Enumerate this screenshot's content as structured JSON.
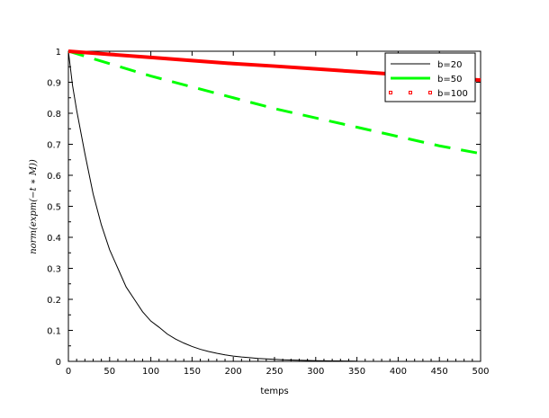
{
  "chart_data": {
    "type": "line",
    "xlabel": "temps",
    "ylabel": "norm(expm(−t ∗ M))",
    "xlim": [
      0,
      500
    ],
    "ylim": [
      0,
      1
    ],
    "xticks": [
      0,
      50,
      100,
      150,
      200,
      250,
      300,
      350,
      400,
      450,
      500
    ],
    "yticks": [
      0,
      0.1,
      0.2,
      0.3,
      0.4,
      0.5,
      0.6,
      0.7,
      0.8,
      0.9,
      1
    ],
    "grid": false,
    "legend_position": "top-right",
    "series": [
      {
        "name": "b=20",
        "color": "#000000",
        "style": "solid-thin",
        "x": [
          0,
          5,
          10,
          20,
          30,
          40,
          50,
          60,
          70,
          80,
          90,
          100,
          110,
          120,
          130,
          140,
          150,
          160,
          170,
          180,
          190,
          200,
          210,
          220,
          230,
          240,
          250,
          260,
          270,
          280,
          290,
          300,
          310,
          320,
          330,
          340,
          350
        ],
        "y": [
          1,
          0.89,
          0.81,
          0.67,
          0.54,
          0.44,
          0.36,
          0.3,
          0.24,
          0.2,
          0.16,
          0.13,
          0.11,
          0.088,
          0.072,
          0.059,
          0.048,
          0.039,
          0.032,
          0.026,
          0.021,
          0.017,
          0.014,
          0.012,
          0.0095,
          0.0078,
          0.0064,
          0.0052,
          0.0043,
          0.0035,
          0.0028,
          0.0023,
          0.0019,
          0.0016,
          0.0013,
          0.001,
          0.0008
        ]
      },
      {
        "name": "b=50",
        "color": "#00ff00",
        "style": "dashed-thick",
        "x": [
          0,
          50,
          100,
          150,
          200,
          250,
          300,
          350,
          400,
          450,
          500
        ],
        "y": [
          1,
          0.96,
          0.92,
          0.885,
          0.85,
          0.815,
          0.785,
          0.755,
          0.725,
          0.695,
          0.67
        ]
      },
      {
        "name": "b=100",
        "color": "#ff0000",
        "style": "dotted-markers-thick",
        "x": [
          0,
          50,
          100,
          150,
          200,
          250,
          300,
          350,
          400,
          450,
          500
        ],
        "y": [
          1,
          0.99,
          0.98,
          0.97,
          0.96,
          0.952,
          0.943,
          0.934,
          0.925,
          0.916,
          0.907
        ]
      }
    ]
  }
}
